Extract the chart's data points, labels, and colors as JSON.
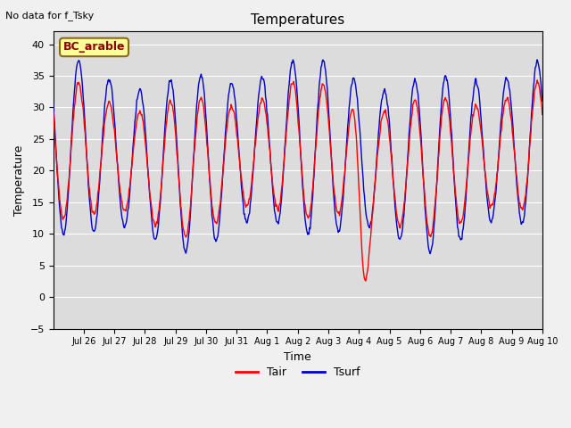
{
  "title": "Temperatures",
  "xlabel": "Time",
  "ylabel": "Temperature",
  "note": "No data for f_Tsky",
  "legend_label": "BC_arable",
  "tair_label": "Tair",
  "tsurf_label": "Tsurf",
  "tair_color": "#ff0000",
  "tsurf_color": "#0000cc",
  "ylim": [
    -5,
    42
  ],
  "yticks": [
    -5,
    0,
    5,
    10,
    15,
    20,
    25,
    30,
    35,
    40
  ],
  "fig_bg": "#f0f0f0",
  "axes_bg": "#dcdcdc",
  "grid_color": "#ffffff",
  "xtick_labels": [
    "Jul 26",
    "Jul 27",
    "Jul 28",
    "Jul 29",
    "Jul 30",
    "Jul 31",
    "Aug 1",
    "Aug 2",
    "Aug 3",
    "Aug 4",
    "Aug 5",
    "Aug 6",
    "Aug 7",
    "Aug 8",
    "Aug 9",
    "Aug 10"
  ],
  "tair_fontsize": 9,
  "title_fontsize": 11,
  "label_fontsize": 9,
  "tick_fontsize": 8,
  "note_fontsize": 8
}
